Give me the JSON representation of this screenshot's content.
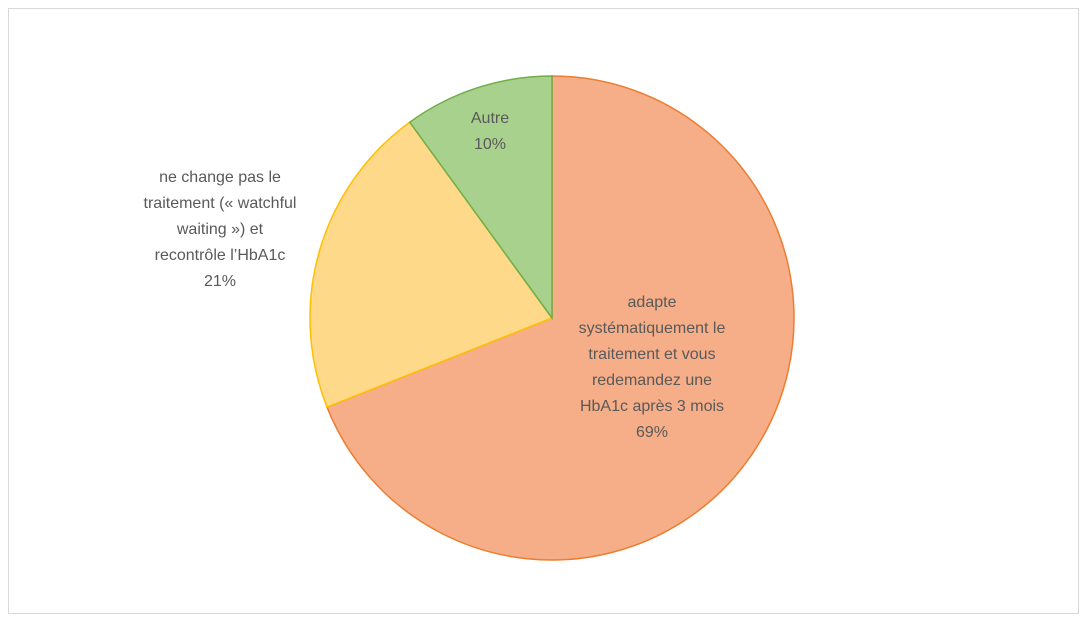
{
  "chart_data": {
    "type": "pie",
    "categories": [
      "adapte systématiquement le traitement et vous redemandez une HbA1c après 3 mois",
      "ne change pas le traitement (« watchful waiting ») et recontrôle l’HbA1c",
      "Autre"
    ],
    "values": [
      69,
      21,
      10
    ],
    "value_labels": [
      "69%",
      "21%",
      "10%"
    ],
    "colors": [
      "#f5ae88",
      "#ffd98a",
      "#a9d18e"
    ],
    "edge_colors": [
      "#ed7d31",
      "#ffc000",
      "#70ad47"
    ]
  }
}
